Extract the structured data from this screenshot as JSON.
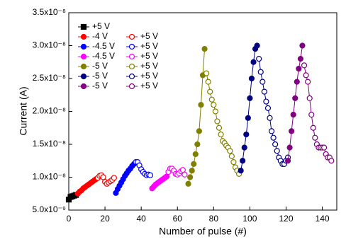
{
  "chart_data": {
    "type": "line",
    "x_label": "Number of pulse (#)",
    "y_label": "Current (A)",
    "xlim": [
      0,
      148
    ],
    "xticks": [
      0,
      20,
      40,
      60,
      80,
      100,
      120,
      140
    ],
    "ylim": [
      5e-09,
      3.5e-08
    ],
    "yticks": [
      {
        "value": 5e-09,
        "label": "5.0x10⁻⁹"
      },
      {
        "value": 1e-08,
        "label": "1.0x10⁻⁸"
      },
      {
        "value": 1.5e-08,
        "label": "1.5x10⁻⁸"
      },
      {
        "value": 2e-08,
        "label": "2.0x10⁻⁸"
      },
      {
        "value": 2.5e-08,
        "label": "2.5x10⁻⁸"
      },
      {
        "value": 3e-08,
        "label": "3.0x10⁻⁸"
      },
      {
        "value": 3.5e-08,
        "label": "3.5x10⁻⁸"
      }
    ],
    "series": [
      {
        "name": "+5 V",
        "color": "#000000",
        "marker": "square",
        "filled": true,
        "x": [
          0,
          1,
          2,
          3,
          4
        ],
        "values": [
          6.6e-09,
          7e-09,
          7.1e-09,
          7.2e-09,
          7.3e-09
        ]
      },
      {
        "name": "-4 V",
        "color": "#ff0000",
        "marker": "circle",
        "filled": true,
        "x": [
          5,
          6,
          7,
          8,
          9,
          10,
          11,
          12,
          13,
          14,
          15
        ],
        "values": [
          7.5e-09,
          7.8e-09,
          8e-09,
          8.3e-09,
          8.5e-09,
          8.7e-09,
          8.9e-09,
          9.1e-09,
          9.3e-09,
          9.5e-09,
          9.7e-09
        ]
      },
      {
        "name": "+5 V",
        "color": "#ff0000",
        "marker": "circle",
        "filled": false,
        "x": [
          16,
          17,
          18,
          19,
          20,
          21,
          22,
          23,
          24,
          25
        ],
        "values": [
          9.9e-09,
          1.02e-08,
          1.03e-08,
          1e-08,
          9.3e-09,
          9e-09,
          9.2e-09,
          9.4e-09,
          9.6e-09,
          9.9e-09
        ]
      },
      {
        "name": "-4.5 V",
        "color": "#0000ff",
        "marker": "circle",
        "filled": true,
        "x": [
          26,
          27,
          28,
          29,
          30,
          31,
          32,
          33,
          34,
          35,
          36
        ],
        "values": [
          7.6e-09,
          8.2e-09,
          8.7e-09,
          9.2e-09,
          9.7e-09,
          1.02e-08,
          1.06e-08,
          1.1e-08,
          1.13e-08,
          1.17e-08,
          1.2e-08
        ]
      },
      {
        "name": "+5 V",
        "color": "#0000ff",
        "marker": "circle",
        "filled": false,
        "x": [
          37,
          38,
          39,
          40,
          41,
          42,
          43,
          44,
          45
        ],
        "values": [
          1.23e-08,
          1.23e-08,
          1.18e-08,
          1.12e-08,
          1.08e-08,
          1.05e-08,
          1.03e-08,
          1.04e-08,
          1.03e-08
        ]
      },
      {
        "name": "-4.5 V",
        "color": "#ff00ff",
        "marker": "circle",
        "filled": true,
        "x": [
          46,
          47,
          48,
          49,
          50,
          51,
          52,
          53,
          54
        ],
        "values": [
          8.3e-09,
          8.6e-09,
          8.9e-09,
          9.1e-09,
          9.3e-09,
          9.5e-09,
          9.7e-09,
          9.9e-09,
          1.01e-08
        ]
      },
      {
        "name": "+5 V",
        "color": "#ff00ff",
        "marker": "circle",
        "filled": false,
        "x": [
          55,
          56,
          57,
          58,
          59,
          60,
          61,
          62,
          63,
          64
        ],
        "values": [
          1.08e-08,
          1.13e-08,
          1.13e-08,
          1.1e-08,
          1.05e-08,
          1.04e-08,
          1.06e-08,
          1.09e-08,
          1.11e-08,
          1.04e-08
        ]
      },
      {
        "name": "-5 V",
        "color": "#808000",
        "marker": "circle",
        "filled": true,
        "x": [
          66,
          67,
          68,
          69,
          70,
          71,
          72,
          73,
          74,
          75
        ],
        "values": [
          9e-09,
          1e-08,
          1.1e-08,
          1.2e-08,
          1.35e-08,
          1.5e-08,
          1.7e-08,
          2.1e-08,
          2.55e-08,
          2.95e-08
        ]
      },
      {
        "name": "+5 V",
        "color": "#808000",
        "marker": "circle",
        "filled": false,
        "x": [
          76,
          77,
          78,
          79,
          80,
          81,
          82,
          83,
          84,
          85,
          86,
          87,
          88,
          89,
          90,
          91,
          92,
          93,
          94
        ],
        "values": [
          2.58e-08,
          2.45e-08,
          2.3e-08,
          2.18e-08,
          2.1e-08,
          2e-08,
          1.85e-08,
          1.75e-08,
          1.65e-08,
          1.55e-08,
          1.52e-08,
          1.48e-08,
          1.45e-08,
          1.4e-08,
          1.32e-08,
          1.23e-08,
          1.15e-08,
          1.1e-08,
          1.05e-08
        ]
      },
      {
        "name": "-5 V",
        "color": "#000080",
        "marker": "circle",
        "filled": true,
        "x": [
          95,
          96,
          97,
          98,
          99,
          100,
          101,
          102,
          103,
          104
        ],
        "values": [
          1.1e-08,
          1.25e-08,
          1.45e-08,
          1.65e-08,
          1.9e-08,
          2.2e-08,
          2.5e-08,
          2.75e-08,
          2.95e-08,
          3e-08
        ]
      },
      {
        "name": "+5 V",
        "color": "#000080",
        "marker": "circle",
        "filled": false,
        "x": [
          105,
          106,
          107,
          108,
          109,
          110,
          111,
          112,
          113,
          114,
          115,
          116,
          117,
          118,
          119,
          120,
          121
        ],
        "values": [
          2.8e-08,
          2.6e-08,
          2.45e-08,
          2.3e-08,
          2.15e-08,
          2.05e-08,
          1.9e-08,
          1.7e-08,
          1.6e-08,
          1.5e-08,
          1.4e-08,
          1.3e-08,
          1.25e-08,
          1.2e-08,
          1.2e-08,
          1.25e-08,
          1.3e-08
        ]
      },
      {
        "name": "-5 V",
        "color": "#800080",
        "marker": "circle",
        "filled": true,
        "x": [
          121,
          122,
          123,
          124,
          125,
          126,
          127,
          128,
          129
        ],
        "values": [
          1.25e-08,
          1.45e-08,
          1.7e-08,
          1.95e-08,
          2.2e-08,
          2.45e-08,
          2.65e-08,
          2.8e-08,
          3e-08
        ]
      },
      {
        "name": "+5 V",
        "color": "#800080",
        "marker": "circle",
        "filled": false,
        "x": [
          130,
          131,
          132,
          133,
          134,
          135,
          136,
          137,
          138,
          139,
          140,
          141,
          142,
          143,
          144,
          145
        ],
        "values": [
          2.7e-08,
          2.55e-08,
          2.45e-08,
          2.2e-08,
          1.95e-08,
          1.75e-08,
          1.6e-08,
          1.5e-08,
          1.45e-08,
          1.45e-08,
          1.45e-08,
          1.45e-08,
          1.35e-08,
          1.3e-08,
          1.3e-08,
          1.25e-08
        ]
      }
    ],
    "legend": "upper left"
  }
}
